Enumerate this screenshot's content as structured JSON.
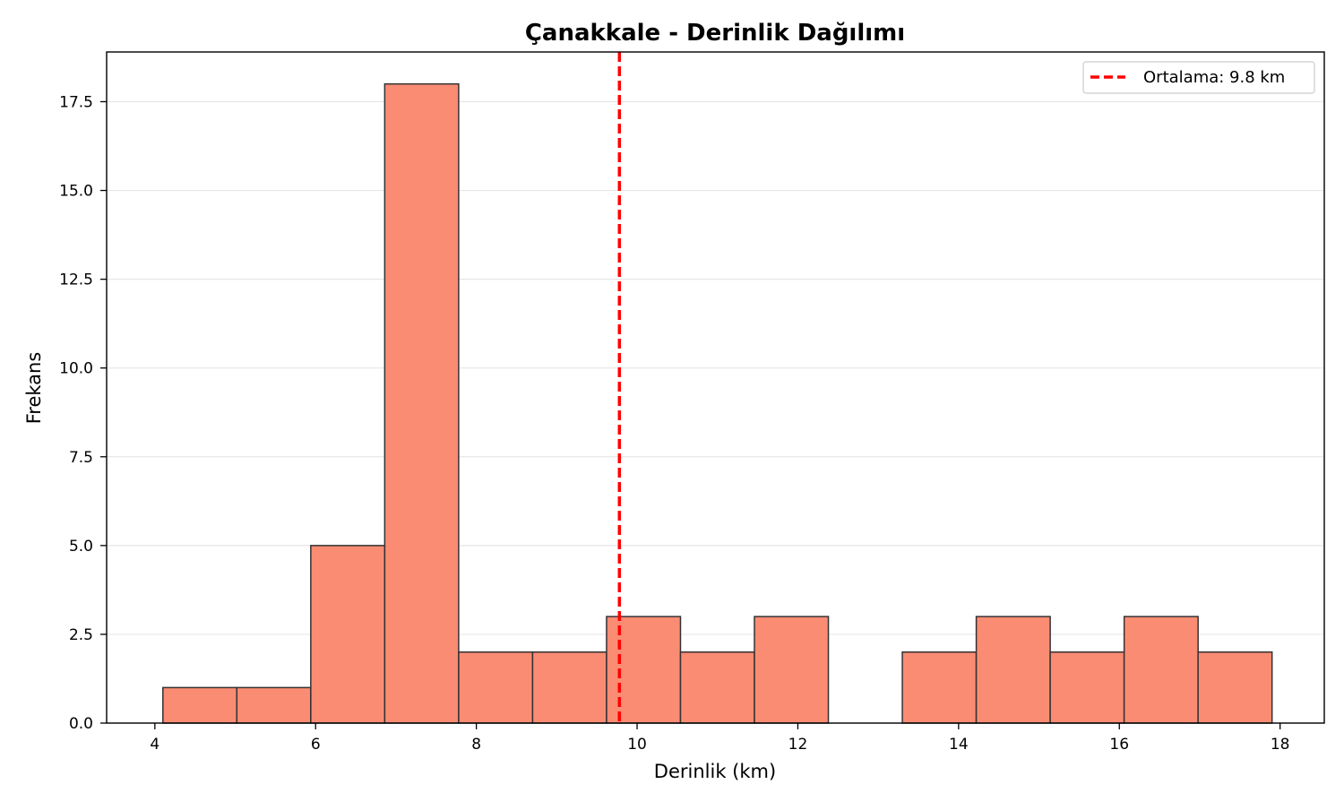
{
  "chart_data": {
    "type": "bar",
    "title": "Çanakkale - Derinlik Dağılımı",
    "xlabel": "Derinlik (km)",
    "ylabel": "Frekans",
    "xlim": [
      3.4,
      18.55
    ],
    "ylim": [
      0,
      18.9
    ],
    "x_ticks": [
      "4",
      "6",
      "8",
      "10",
      "12",
      "14",
      "16",
      "18"
    ],
    "x_tick_values": [
      4,
      6,
      8,
      10,
      12,
      14,
      16,
      18
    ],
    "y_ticks": [
      "0.0",
      "2.5",
      "5.0",
      "7.5",
      "10.0",
      "12.5",
      "15.0",
      "17.5"
    ],
    "y_tick_values": [
      0,
      2.5,
      5,
      7.5,
      10,
      12.5,
      15,
      17.5
    ],
    "bin_edges": [
      4.1,
      5.02,
      5.94,
      6.86,
      7.78,
      8.7,
      9.62,
      10.54,
      11.46,
      12.38,
      13.3,
      14.22,
      15.14,
      16.06,
      16.98,
      17.9
    ],
    "values": [
      1,
      1,
      5,
      18,
      2,
      2,
      3,
      2,
      3,
      0,
      2,
      3,
      2,
      3,
      2
    ],
    "mean_line": {
      "x": 9.78,
      "label": "Ortalama: 9.8 km"
    },
    "grid": "y",
    "legend_position": "top-right",
    "colors": {
      "bar_fill": "#fa8c73",
      "bar_edge": "#333333",
      "mean_line": "#ff0000",
      "grid": "#e6e6e6"
    }
  }
}
